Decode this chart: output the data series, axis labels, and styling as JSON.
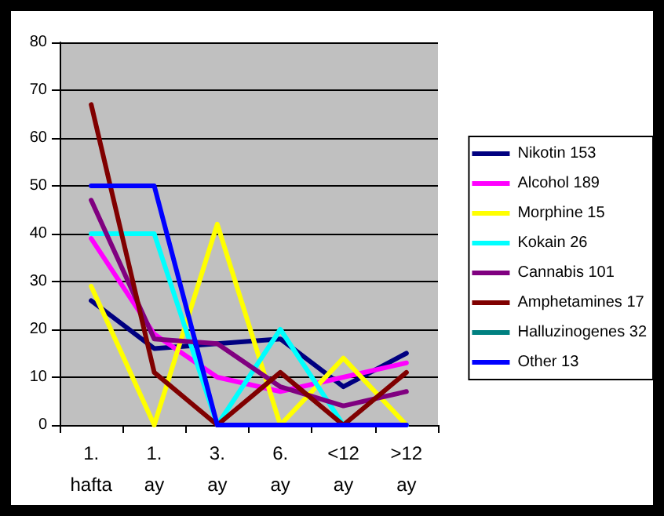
{
  "chart_data": {
    "type": "line",
    "categories": [
      "1. hafta",
      "1. ay",
      "3. ay",
      "6. ay",
      "<12 ay",
      ">12 ay"
    ],
    "series": [
      {
        "name": "Nikotin 153",
        "color": "#000080",
        "values": [
          26,
          16,
          17,
          18,
          8,
          15
        ]
      },
      {
        "name": "Alcohol 189",
        "color": "#ff00ff",
        "values": [
          39,
          19,
          10,
          7,
          10,
          13
        ]
      },
      {
        "name": "Morphine 15",
        "color": "#ffff00",
        "values": [
          29,
          0,
          42,
          0,
          14,
          0
        ]
      },
      {
        "name": "Kokain 26",
        "color": "#00ffff",
        "values": [
          40,
          40,
          0,
          20,
          0,
          0
        ]
      },
      {
        "name": "Cannabis 101",
        "color": "#800080",
        "values": [
          47,
          18,
          17,
          8,
          4,
          7
        ]
      },
      {
        "name": "Amphetamines 17",
        "color": "#800000",
        "values": [
          67,
          11,
          0,
          11,
          0,
          11
        ]
      },
      {
        "name": "Halluzinogenes 32",
        "color": "#008080",
        "values": [
          null,
          null,
          null,
          null,
          null,
          null
        ]
      },
      {
        "name": "Other 13",
        "color": "#0000ff",
        "values": [
          50,
          50,
          0,
          0,
          0,
          0
        ]
      }
    ],
    "ylim": [
      0,
      80
    ],
    "yticks": [
      0,
      10,
      20,
      30,
      40,
      50,
      60,
      70,
      80
    ],
    "grid": "y",
    "legend": "right",
    "marker": "none",
    "line_style": "solid"
  }
}
